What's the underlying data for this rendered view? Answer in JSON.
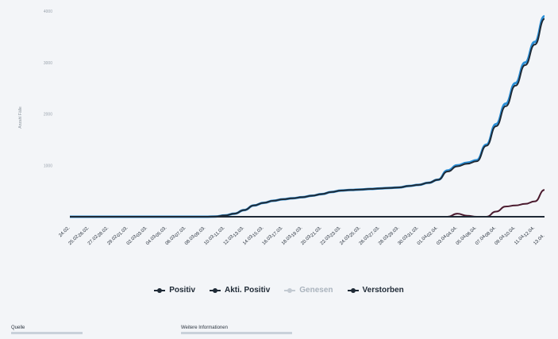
{
  "chart_data": {
    "type": "line",
    "title": "",
    "xlabel": "",
    "ylabel": "Anzahl Fälle",
    "ylim": [
      0,
      4000
    ],
    "yticks": [
      0,
      1000,
      2000,
      3000,
      4000
    ],
    "grid": false,
    "legend_placement": "bottom-center",
    "categories": [
      "24.02.",
      "25.02.",
      "26.02.",
      "27.02.",
      "28.02.",
      "29.02.",
      "01.03.",
      "02.03.",
      "03.03.",
      "04.03.",
      "05.03.",
      "06.03.",
      "07.03.",
      "08.03.",
      "09.03.",
      "10.03.",
      "11.03.",
      "12.03.",
      "13.03.",
      "14.03.",
      "15.03.",
      "16.03.",
      "17.03.",
      "18.03.",
      "19.03.",
      "20.03.",
      "21.03.",
      "22.03.",
      "23.03.",
      "24.03.",
      "25.03.",
      "26.03.",
      "27.03.",
      "28.03.",
      "29.03.",
      "30.03.",
      "31.03.",
      "01.04.",
      "02.04.",
      "03.04.",
      "04.04.",
      "05.04.",
      "06.04.",
      "07.04.",
      "08.04.",
      "09.04.",
      "10.04.",
      "11.04.",
      "12.04.",
      "13.04."
    ],
    "series": [
      {
        "name": "Positiv",
        "color": "#2b8fd6",
        "values": [
          0,
          0,
          0,
          0,
          0,
          0,
          0,
          0,
          0,
          0,
          0,
          0,
          0,
          0,
          0,
          5,
          25,
          60,
          130,
          220,
          270,
          310,
          340,
          360,
          380,
          410,
          440,
          480,
          510,
          520,
          530,
          540,
          550,
          560,
          570,
          600,
          620,
          660,
          720,
          900,
          1000,
          1050,
          1100,
          1400,
          1800,
          2200,
          2600,
          3000,
          3400,
          3900
        ]
      },
      {
        "name": "Akti. Positiv",
        "color": "#1f2a36",
        "values": [
          0,
          0,
          0,
          0,
          0,
          0,
          0,
          0,
          0,
          0,
          0,
          0,
          0,
          0,
          0,
          5,
          25,
          60,
          130,
          220,
          270,
          310,
          340,
          360,
          380,
          410,
          440,
          480,
          510,
          520,
          530,
          540,
          550,
          560,
          570,
          600,
          620,
          660,
          720,
          880,
          980,
          1030,
          1080,
          1380,
          1760,
          2150,
          2550,
          2950,
          3350,
          3850
        ]
      },
      {
        "name": "Genesen",
        "color": "#c3cad2",
        "values": [
          0,
          0,
          0,
          0,
          0,
          0,
          0,
          0,
          0,
          0,
          0,
          0,
          0,
          0,
          0,
          0,
          0,
          0,
          0,
          0,
          0,
          0,
          0,
          0,
          0,
          0,
          0,
          0,
          0,
          0,
          0,
          0,
          0,
          0,
          0,
          0,
          0,
          0,
          0,
          0,
          0,
          0,
          0,
          0,
          0,
          0,
          0,
          0,
          0,
          0
        ]
      },
      {
        "name": "Verstorben",
        "color": "#4a1a2e",
        "values": [
          0,
          0,
          0,
          0,
          0,
          0,
          0,
          0,
          0,
          0,
          0,
          0,
          0,
          0,
          0,
          0,
          0,
          0,
          0,
          0,
          0,
          0,
          0,
          0,
          0,
          0,
          0,
          0,
          0,
          0,
          0,
          0,
          0,
          0,
          0,
          0,
          0,
          0,
          0,
          0,
          60,
          20,
          0,
          0,
          100,
          200,
          220,
          250,
          300,
          520
        ]
      }
    ]
  },
  "footer": {
    "source_label": "Quelle",
    "more_label": "Weitere Informationen"
  }
}
